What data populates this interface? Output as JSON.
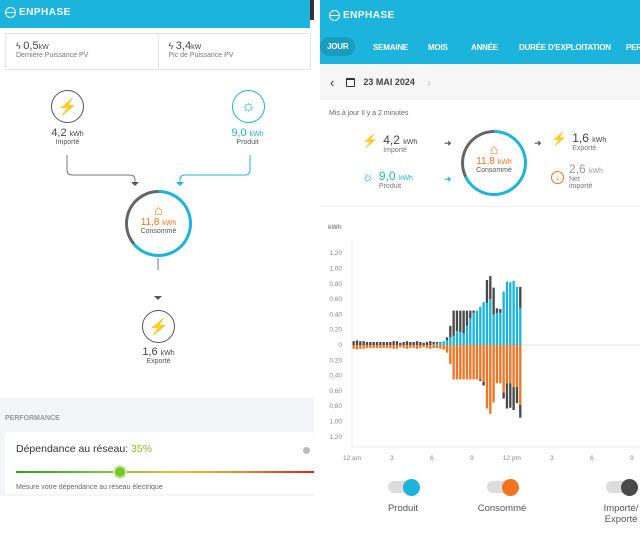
{
  "brand": "ENPHASE",
  "left": {
    "pv": [
      {
        "value": "0,5",
        "unit": "kW",
        "label": "Dernière Puissance PV"
      },
      {
        "value": "3,4",
        "unit": "kW",
        "label": "Pic de Puissance PV"
      }
    ],
    "imported": {
      "value": "4,2",
      "unit": "kWh",
      "label": "Importé"
    },
    "produced": {
      "value": "9,0",
      "unit": "kWh",
      "label": "Produit"
    },
    "consumed": {
      "value": "11,8",
      "unit": "kWh",
      "label": "Consommé"
    },
    "exported": {
      "value": "1,6",
      "unit": "kWh",
      "label": "Exporté"
    },
    "performance": {
      "title": "PERFORMANCE",
      "metric_label": "Dépendance au réseau:",
      "metric_value": "35%",
      "metric_fraction": 0.35,
      "description": "Mesure votre dépendance au réseau électrique"
    }
  },
  "right": {
    "tabs": [
      {
        "label": "JOUR",
        "active": true
      },
      {
        "label": "SEMAINE"
      },
      {
        "label": "MOIS"
      },
      {
        "label": "ANNÉE"
      },
      {
        "label": "DURÉE D'EXPLOITATION"
      },
      {
        "label": "PER"
      }
    ],
    "date": "23 MAI 2024",
    "updated": "Mis à jour Il y a 2 minutes",
    "imported": {
      "value": "4,2",
      "unit": "kWh",
      "label": "Importé"
    },
    "produced": {
      "value": "9,0",
      "unit": "kWh",
      "label": "Produit"
    },
    "consumed": {
      "value": "11,8",
      "unit": "kWh",
      "label": "Consommé"
    },
    "exported": {
      "value": "1,6",
      "unit": "kWh",
      "label": "Exporté"
    },
    "net": {
      "value": "2,6",
      "unit": "kWh",
      "label1": "Net",
      "label2": "importé"
    },
    "legend": [
      {
        "label": "Produit",
        "color": "#1cb4dc"
      },
      {
        "label": "Consommé",
        "color": "#f37321"
      },
      {
        "label": "Importé/ Exporté",
        "color": "#4a4a4a"
      }
    ]
  },
  "colors": {
    "accent": "#1cb4dc",
    "consumed": "#f37321",
    "grid": "#4a4a4a",
    "good": "#7cc62a"
  },
  "chart_data": {
    "type": "bar",
    "ylabel": "kWh",
    "ylim": [
      -1.2,
      1.2
    ],
    "yticks": [
      "1,20",
      "1,00",
      "0,80",
      "0,60",
      "0,40",
      "0,20",
      "0",
      "0,20",
      "0,40",
      "0,60",
      "0,80",
      "1,00",
      "1,20"
    ],
    "xticks": [
      "12 am",
      "3",
      "6",
      "9",
      "12 pm",
      "3",
      "6",
      "9"
    ],
    "interval_hours": 0.25,
    "produced": [
      0,
      0,
      0,
      0,
      0,
      0,
      0,
      0,
      0,
      0,
      0,
      0,
      0,
      0,
      0,
      0,
      0,
      0,
      0,
      0,
      0,
      0,
      0,
      0,
      0.01,
      0.02,
      0.03,
      0.05,
      0.06,
      0.1,
      0.12,
      0.18,
      0.17,
      0.15,
      0.25,
      0.35,
      0.42,
      0.45,
      0.5,
      0.56,
      0.55,
      0.6,
      0.4,
      0.42,
      0.42,
      0.7,
      0.83,
      0.82,
      0.84,
      0.76,
      0.48
    ],
    "imported": [
      0.05,
      0.06,
      0.05,
      0.05,
      0.04,
      0.04,
      0.04,
      0.04,
      0.04,
      0.04,
      0.04,
      0.04,
      0.05,
      0.05,
      0.03,
      0.04,
      0.05,
      0.04,
      0.04,
      0.05,
      0.04,
      0.03,
      0.04,
      0.05,
      0.03,
      0.02,
      0.01,
      0,
      0.04,
      0.15,
      0.33,
      0.27,
      0.28,
      0.3,
      0.2,
      0.1,
      0.03,
      0,
      0,
      0,
      0.3,
      0.3,
      0.35,
      0.06,
      0.05,
      0,
      0,
      0,
      0,
      0,
      0.28
    ],
    "consumed": [
      -0.05,
      -0.06,
      -0.05,
      -0.05,
      -0.04,
      -0.04,
      -0.04,
      -0.04,
      -0.04,
      -0.04,
      -0.04,
      -0.04,
      -0.05,
      -0.05,
      -0.03,
      -0.04,
      -0.05,
      -0.04,
      -0.04,
      -0.05,
      -0.04,
      -0.03,
      -0.04,
      -0.05,
      -0.04,
      -0.04,
      -0.05,
      -0.06,
      -0.1,
      -0.25,
      -0.45,
      -0.45,
      -0.45,
      -0.45,
      -0.45,
      -0.45,
      -0.45,
      -0.45,
      -0.45,
      -0.48,
      -0.83,
      -0.9,
      -0.75,
      -0.5,
      -0.5,
      -0.62,
      -0.5,
      -0.5,
      -0.55,
      -0.55,
      -0.78
    ],
    "exported": [
      0,
      0,
      0,
      0,
      0,
      0,
      0,
      0,
      0,
      0,
      0,
      0,
      0,
      0,
      0,
      0,
      0,
      0,
      0,
      0,
      0,
      0,
      0,
      0,
      0,
      0,
      0,
      0,
      0,
      0,
      0,
      0,
      0,
      0,
      0,
      0,
      0,
      0,
      -0.02,
      -0.05,
      0,
      0,
      0,
      0,
      0,
      -0.08,
      -0.33,
      -0.32,
      -0.3,
      -0.21,
      -0.17
    ]
  }
}
